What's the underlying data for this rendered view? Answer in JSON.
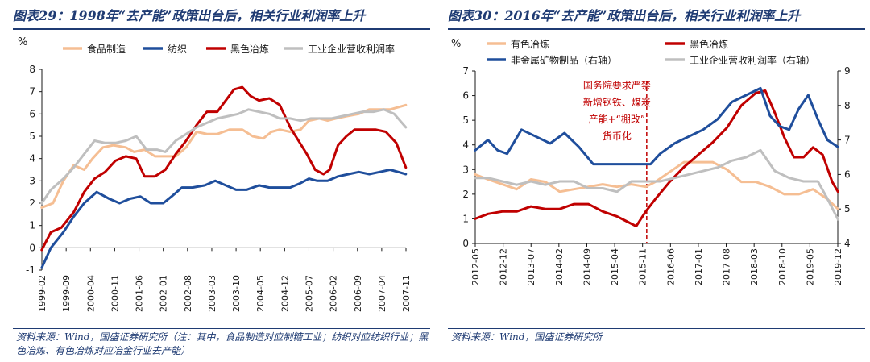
{
  "chart_data": [
    {
      "type": "line",
      "title": "图表29：1998年“去产能”政策出台后，相关行业利润率上升",
      "ylabel": "%",
      "ylim": [
        -1,
        8
      ],
      "yticks": [
        "-1",
        "0",
        "1",
        "2",
        "3",
        "4",
        "5",
        "6",
        "7",
        "8"
      ],
      "xlim": [
        1999.083,
        2007.833
      ],
      "xtick_labels": [
        "1999-02",
        "1999-09",
        "2000-04",
        "2000-11",
        "2001-06",
        "2002-01",
        "2002-08",
        "2003-03",
        "2003-10",
        "2004-05",
        "2004-12",
        "2005-07",
        "2006-02",
        "2006-09",
        "2007-04",
        "2007-11"
      ],
      "xtick_values": [
        1999.083,
        1999.667,
        2000.25,
        2000.833,
        2001.417,
        2002.0,
        2002.583,
        2003.167,
        2003.75,
        2004.333,
        2004.917,
        2005.5,
        2006.083,
        2006.667,
        2007.25,
        2007.833
      ],
      "grid": false,
      "legend_position": "top",
      "series": [
        {
          "name": "食品制造",
          "color": "#f5be93",
          "x": [
            1999.08,
            1999.35,
            1999.6,
            1999.85,
            2000.1,
            2000.3,
            2000.55,
            2000.8,
            2001.1,
            2001.3,
            2001.55,
            2001.8,
            2002.1,
            2002.3,
            2002.55,
            2002.8,
            2003.05,
            2003.3,
            2003.6,
            2003.9,
            2004.15,
            2004.4,
            2004.6,
            2004.8,
            2005.05,
            2005.3,
            2005.5,
            2005.75,
            2005.95,
            2006.15,
            2006.4,
            2006.7,
            2006.95,
            2007.2,
            2007.45,
            2007.83
          ],
          "y": [
            1.8,
            2.0,
            3.0,
            3.7,
            3.5,
            4.0,
            4.5,
            4.6,
            4.5,
            4.3,
            4.4,
            4.1,
            4.1,
            4.1,
            4.5,
            5.2,
            5.1,
            5.1,
            5.3,
            5.3,
            5.0,
            4.9,
            5.2,
            5.3,
            5.2,
            5.3,
            5.7,
            5.8,
            5.7,
            5.8,
            5.9,
            6.0,
            6.2,
            6.2,
            6.2,
            6.4
          ]
        },
        {
          "name": "纺织",
          "color": "#1f4e9c",
          "x": [
            1999.08,
            1999.3,
            1999.6,
            1999.85,
            2000.1,
            2000.4,
            2000.7,
            2000.95,
            2001.2,
            2001.45,
            2001.7,
            2002.0,
            2002.2,
            2002.45,
            2002.7,
            2003.0,
            2003.25,
            2003.5,
            2003.75,
            2004.0,
            2004.3,
            2004.55,
            2004.8,
            2005.05,
            2005.3,
            2005.5,
            2005.7,
            2005.95,
            2006.2,
            2006.45,
            2006.7,
            2006.95,
            2007.2,
            2007.45,
            2007.65,
            2007.83
          ],
          "y": [
            -0.9,
            0.0,
            0.7,
            1.4,
            2.0,
            2.5,
            2.2,
            2.0,
            2.2,
            2.3,
            2.0,
            2.0,
            2.3,
            2.7,
            2.7,
            2.8,
            3.0,
            2.8,
            2.6,
            2.6,
            2.8,
            2.7,
            2.7,
            2.7,
            2.9,
            3.1,
            3.0,
            3.0,
            3.2,
            3.3,
            3.4,
            3.3,
            3.4,
            3.5,
            3.4,
            3.3
          ]
        },
        {
          "name": "黑色冶炼",
          "color": "#c00000",
          "x": [
            1999.08,
            1999.3,
            1999.55,
            1999.85,
            2000.1,
            2000.35,
            2000.6,
            2000.85,
            2001.1,
            2001.35,
            2001.55,
            2001.8,
            2002.05,
            2002.3,
            2002.55,
            2002.8,
            2003.05,
            2003.3,
            2003.5,
            2003.7,
            2003.9,
            2004.1,
            2004.3,
            2004.55,
            2004.8,
            2005.05,
            2005.25,
            2005.45,
            2005.65,
            2005.85,
            2006.0,
            2006.2,
            2006.4,
            2006.6,
            2006.85,
            2007.1,
            2007.35,
            2007.6,
            2007.83
          ],
          "y": [
            -0.1,
            0.7,
            0.9,
            1.6,
            2.5,
            3.1,
            3.4,
            3.9,
            4.1,
            4.0,
            3.2,
            3.2,
            3.5,
            4.2,
            4.8,
            5.5,
            6.1,
            6.1,
            6.6,
            7.1,
            7.2,
            6.8,
            6.6,
            6.7,
            6.4,
            5.4,
            4.8,
            4.2,
            3.5,
            3.3,
            3.5,
            4.6,
            5.0,
            5.3,
            5.3,
            5.3,
            5.2,
            4.7,
            3.6
          ]
        },
        {
          "name": "工业企业营收利润率",
          "color": "#bfbfbf",
          "x": [
            1999.08,
            1999.3,
            1999.6,
            1999.85,
            2000.1,
            2000.35,
            2000.6,
            2000.85,
            2001.1,
            2001.35,
            2001.6,
            2001.85,
            2002.05,
            2002.3,
            2002.55,
            2002.8,
            2003.05,
            2003.3,
            2003.55,
            2003.8,
            2004.05,
            2004.3,
            2004.55,
            2004.8,
            2005.05,
            2005.3,
            2005.55,
            2005.8,
            2006.05,
            2006.3,
            2006.55,
            2006.8,
            2007.05,
            2007.3,
            2007.55,
            2007.83
          ],
          "y": [
            2.0,
            2.6,
            3.1,
            3.6,
            4.2,
            4.8,
            4.7,
            4.7,
            4.8,
            5.0,
            4.4,
            4.4,
            4.3,
            4.8,
            5.1,
            5.4,
            5.6,
            5.8,
            5.9,
            6.0,
            6.2,
            6.1,
            6.0,
            5.8,
            5.8,
            5.7,
            5.8,
            5.8,
            5.8,
            5.9,
            6.0,
            6.1,
            6.1,
            6.2,
            6.0,
            5.4
          ]
        }
      ],
      "source": "资料来源：Wind，国盛证券研究所（注：其中，食品制造对应制糖工业；纺织对应纺织行业；黑色冶炼、有色冶炼对应冶金行业去产能）"
    },
    {
      "type": "line",
      "title": "图表30：2016年“去产能”政策出台后，相关行业利润率上升",
      "ylabel": "%",
      "ylim": [
        0,
        7
      ],
      "yticks": [
        "0",
        "1",
        "2",
        "3",
        "4",
        "5",
        "6",
        "7"
      ],
      "y2lim": [
        4,
        9
      ],
      "y2ticks": [
        "4",
        "5",
        "6",
        "7",
        "8",
        "9"
      ],
      "xlim": [
        2012.333,
        2019.917
      ],
      "xtick_labels": [
        "2012-05",
        "2012-12",
        "2013-07",
        "2014-02",
        "2014-09",
        "2015-04",
        "2015-11",
        "2016-06",
        "2017-01",
        "2017-08",
        "2018-03",
        "2018-10",
        "2019-05",
        "2019-12"
      ],
      "xtick_values": [
        2012.333,
        2012.917,
        2013.5,
        2014.083,
        2014.667,
        2015.25,
        2015.833,
        2016.417,
        2017.0,
        2017.583,
        2018.167,
        2018.75,
        2019.333,
        2019.917
      ],
      "grid": false,
      "legend_position": "top",
      "policy_line_x": 2015.92,
      "annotation": [
        "国务院要求严禁",
        "新增钢铁、煤炭",
        "产能+“棚改”",
        "货币化"
      ],
      "series": [
        {
          "name": "有色冶炼",
          "color": "#f5be93",
          "axis": "left",
          "x": [
            2012.33,
            2012.6,
            2012.9,
            2013.2,
            2013.5,
            2013.8,
            2014.1,
            2014.4,
            2014.7,
            2015.0,
            2015.3,
            2015.6,
            2015.9,
            2016.1,
            2016.4,
            2016.7,
            2017.0,
            2017.3,
            2017.6,
            2017.9,
            2018.2,
            2018.5,
            2018.8,
            2019.1,
            2019.4,
            2019.7,
            2019.92
          ],
          "y": [
            2.8,
            2.6,
            2.4,
            2.2,
            2.6,
            2.5,
            2.1,
            2.2,
            2.3,
            2.4,
            2.3,
            2.4,
            2.3,
            2.5,
            2.9,
            3.3,
            3.3,
            3.3,
            3.0,
            2.5,
            2.5,
            2.3,
            2.0,
            2.0,
            2.2,
            1.8,
            1.4
          ]
        },
        {
          "name": "黑色冶炼",
          "color": "#c00000",
          "axis": "left",
          "x": [
            2012.33,
            2012.6,
            2012.9,
            2013.2,
            2013.5,
            2013.8,
            2014.1,
            2014.4,
            2014.7,
            2015.0,
            2015.3,
            2015.5,
            2015.7,
            2015.9,
            2016.1,
            2016.4,
            2016.7,
            2017.0,
            2017.3,
            2017.6,
            2017.9,
            2018.2,
            2018.4,
            2018.6,
            2018.8,
            2019.0,
            2019.2,
            2019.4,
            2019.6,
            2019.8,
            2019.92
          ],
          "y": [
            1.0,
            1.2,
            1.3,
            1.3,
            1.5,
            1.4,
            1.4,
            1.6,
            1.6,
            1.3,
            1.1,
            0.9,
            0.7,
            1.3,
            1.8,
            2.5,
            3.1,
            3.6,
            4.1,
            4.7,
            5.6,
            6.1,
            6.2,
            5.3,
            4.3,
            3.5,
            3.5,
            3.9,
            3.6,
            2.5,
            2.1
          ]
        },
        {
          "name": "非金属矿物制品（右轴）",
          "color": "#1f4e9c",
          "axis": "right",
          "x": [
            2012.33,
            2012.6,
            2012.8,
            2013.0,
            2013.3,
            2013.6,
            2013.9,
            2014.2,
            2014.5,
            2014.8,
            2015.1,
            2015.4,
            2015.7,
            2016.0,
            2016.2,
            2016.5,
            2016.8,
            2017.1,
            2017.4,
            2017.7,
            2018.0,
            2018.3,
            2018.5,
            2018.7,
            2018.9,
            2019.1,
            2019.3,
            2019.5,
            2019.7,
            2019.92
          ],
          "y": [
            6.7,
            7.0,
            6.7,
            6.6,
            7.3,
            7.1,
            6.9,
            7.2,
            6.8,
            6.3,
            6.3,
            6.3,
            6.3,
            6.3,
            6.6,
            6.9,
            7.1,
            7.3,
            7.6,
            8.1,
            8.3,
            8.5,
            7.7,
            7.4,
            7.3,
            7.9,
            8.3,
            7.6,
            7.0,
            6.8
          ]
        },
        {
          "name": "工业企业营收利润率（右轴）",
          "color": "#bfbfbf",
          "axis": "right",
          "x": [
            2012.33,
            2012.6,
            2012.9,
            2013.2,
            2013.5,
            2013.8,
            2014.1,
            2014.4,
            2014.7,
            2015.0,
            2015.3,
            2015.6,
            2015.9,
            2016.2,
            2016.5,
            2016.8,
            2017.1,
            2017.4,
            2017.7,
            2018.0,
            2018.3,
            2018.6,
            2018.9,
            2019.2,
            2019.5,
            2019.7,
            2019.92
          ],
          "y": [
            5.9,
            5.9,
            5.8,
            5.7,
            5.8,
            5.7,
            5.8,
            5.8,
            5.6,
            5.6,
            5.5,
            5.8,
            5.8,
            5.8,
            5.9,
            6.0,
            6.1,
            6.2,
            6.4,
            6.5,
            6.7,
            6.1,
            5.9,
            5.8,
            5.8,
            5.3,
            4.7
          ]
        }
      ],
      "source": "资料来源：Wind，国盛证券研究所"
    }
  ]
}
